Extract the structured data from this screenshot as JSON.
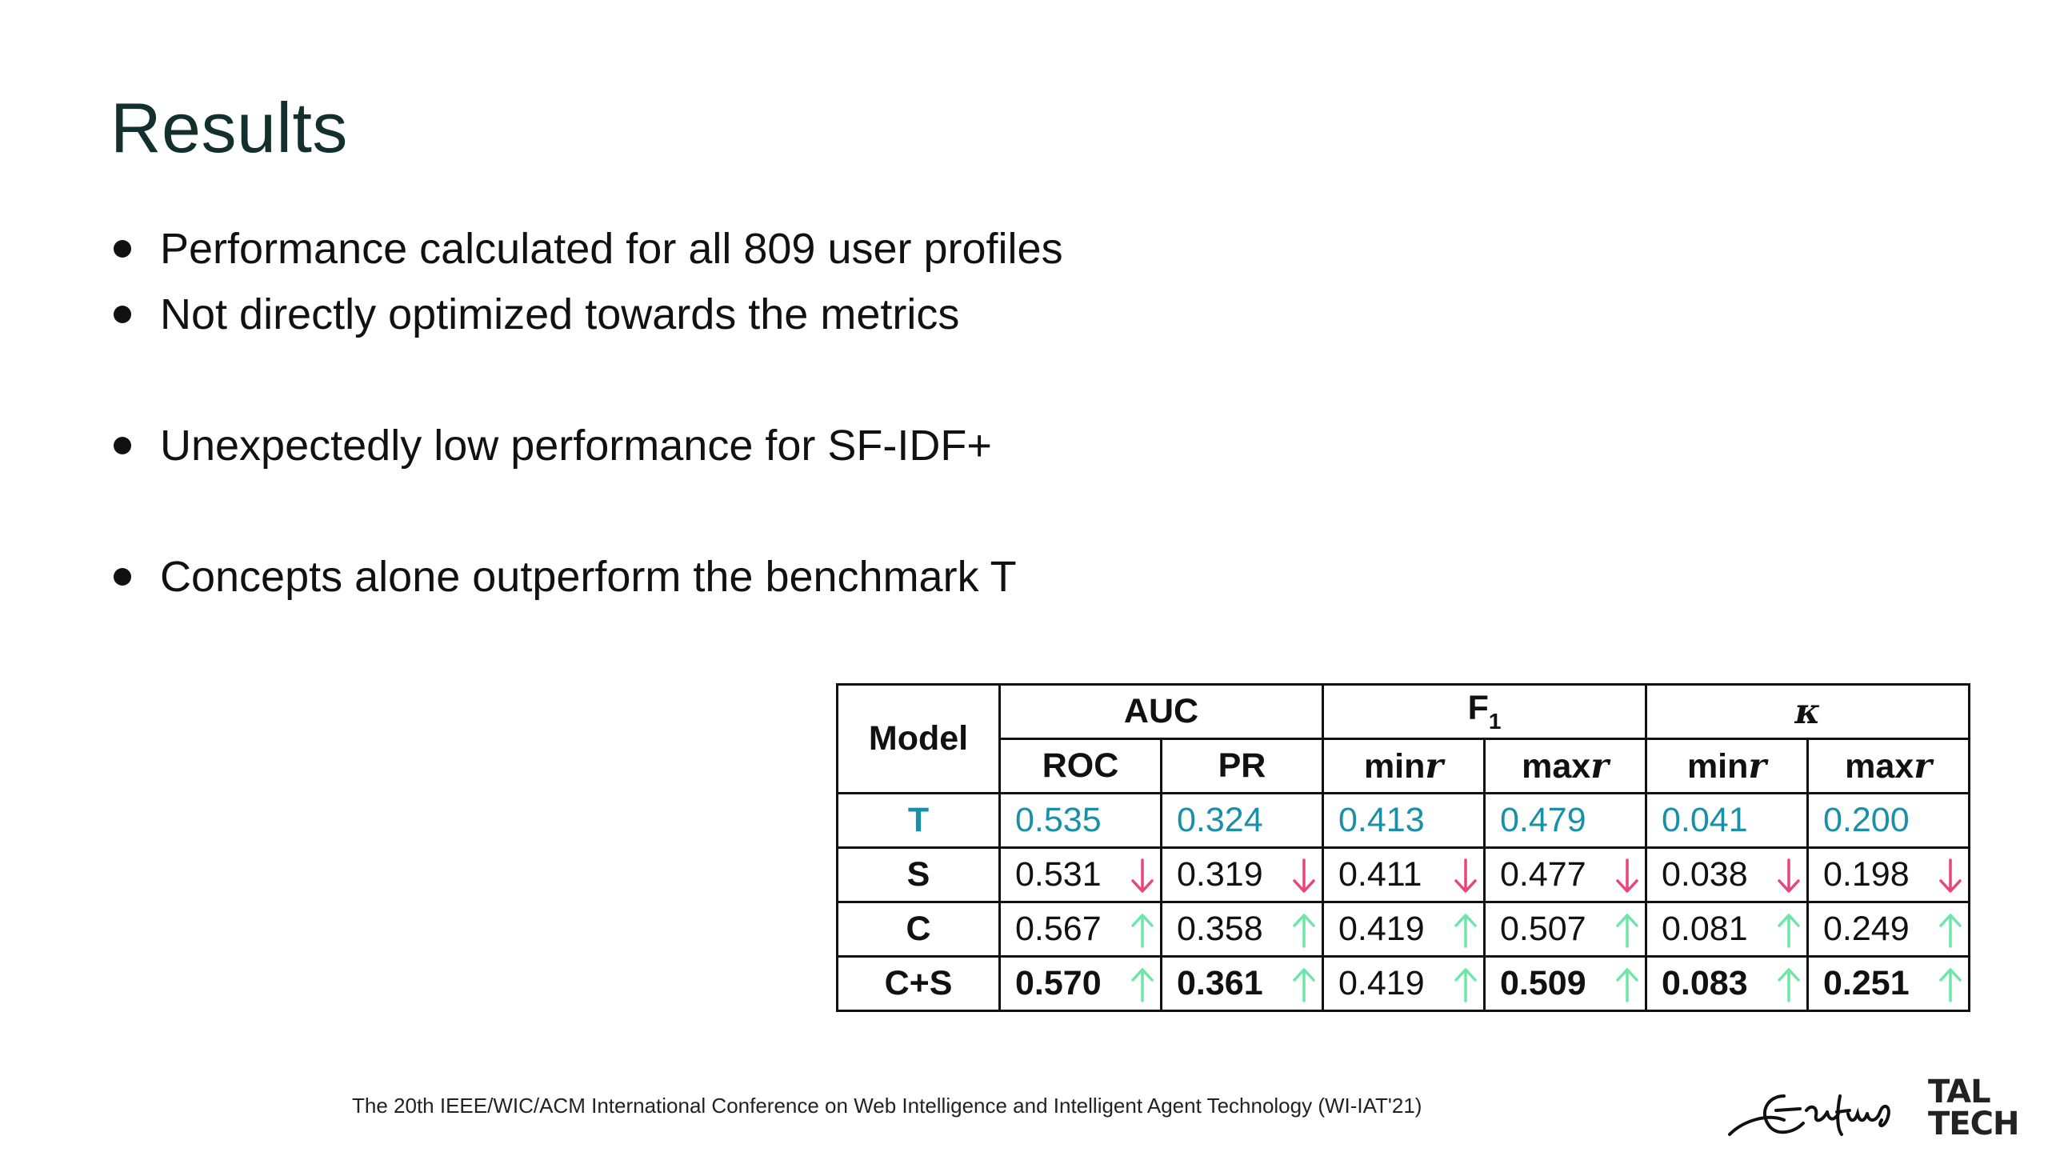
{
  "slide": {
    "title": "Results",
    "bullets": [
      "Performance calculated for all 809 user profiles",
      "Not directly optimized towards the metrics",
      "Unexpectedly low performance for SF-IDF+",
      "Concepts alone outperform the benchmark T"
    ],
    "footer": "The 20th IEEE/WIC/ACM International Conference on Web Intelligence and Intelligent Agent Technology (WI-IAT'21)",
    "logos": {
      "left": "Erasmus signature logo",
      "right_line1": "TAL",
      "right_line2": "TECH"
    }
  },
  "table": {
    "header_model": "Model",
    "groups": {
      "auc": "AUC",
      "f1_main": "F",
      "f1_sub": "1",
      "kappa": "κ"
    },
    "subheaders": {
      "roc": "ROC",
      "pr": "PR",
      "min_prefix": "min",
      "max_prefix": "max",
      "r": "r"
    },
    "rows": [
      {
        "model": "T",
        "values": [
          "0.535",
          "0.324",
          "0.413",
          "0.479",
          "0.041",
          "0.200"
        ],
        "arrows": [
          "none",
          "none",
          "none",
          "none",
          "none",
          "none"
        ],
        "bold": [
          false,
          false,
          false,
          false,
          false,
          false
        ]
      },
      {
        "model": "S",
        "values": [
          "0.531",
          "0.319",
          "0.411",
          "0.477",
          "0.038",
          "0.198"
        ],
        "arrows": [
          "down",
          "down",
          "down",
          "down",
          "down",
          "down"
        ],
        "bold": [
          false,
          false,
          false,
          false,
          false,
          false
        ]
      },
      {
        "model": "C",
        "values": [
          "0.567",
          "0.358",
          "0.419",
          "0.507",
          "0.081",
          "0.249"
        ],
        "arrows": [
          "up",
          "up",
          "up",
          "up",
          "up",
          "up"
        ],
        "bold": [
          false,
          false,
          false,
          false,
          false,
          false
        ]
      },
      {
        "model": "C+S",
        "values": [
          "0.570",
          "0.361",
          "0.419",
          "0.509",
          "0.083",
          "0.251"
        ],
        "arrows": [
          "up",
          "up",
          "up",
          "up",
          "up",
          "up"
        ],
        "bold": [
          true,
          true,
          false,
          true,
          true,
          true
        ]
      }
    ]
  },
  "colors": {
    "title": "#13302f",
    "benchmark_teal": "#1a8fa8",
    "arrow_down": "#e8457a",
    "arrow_up": "#6ee6a8",
    "text": "#111111"
  }
}
